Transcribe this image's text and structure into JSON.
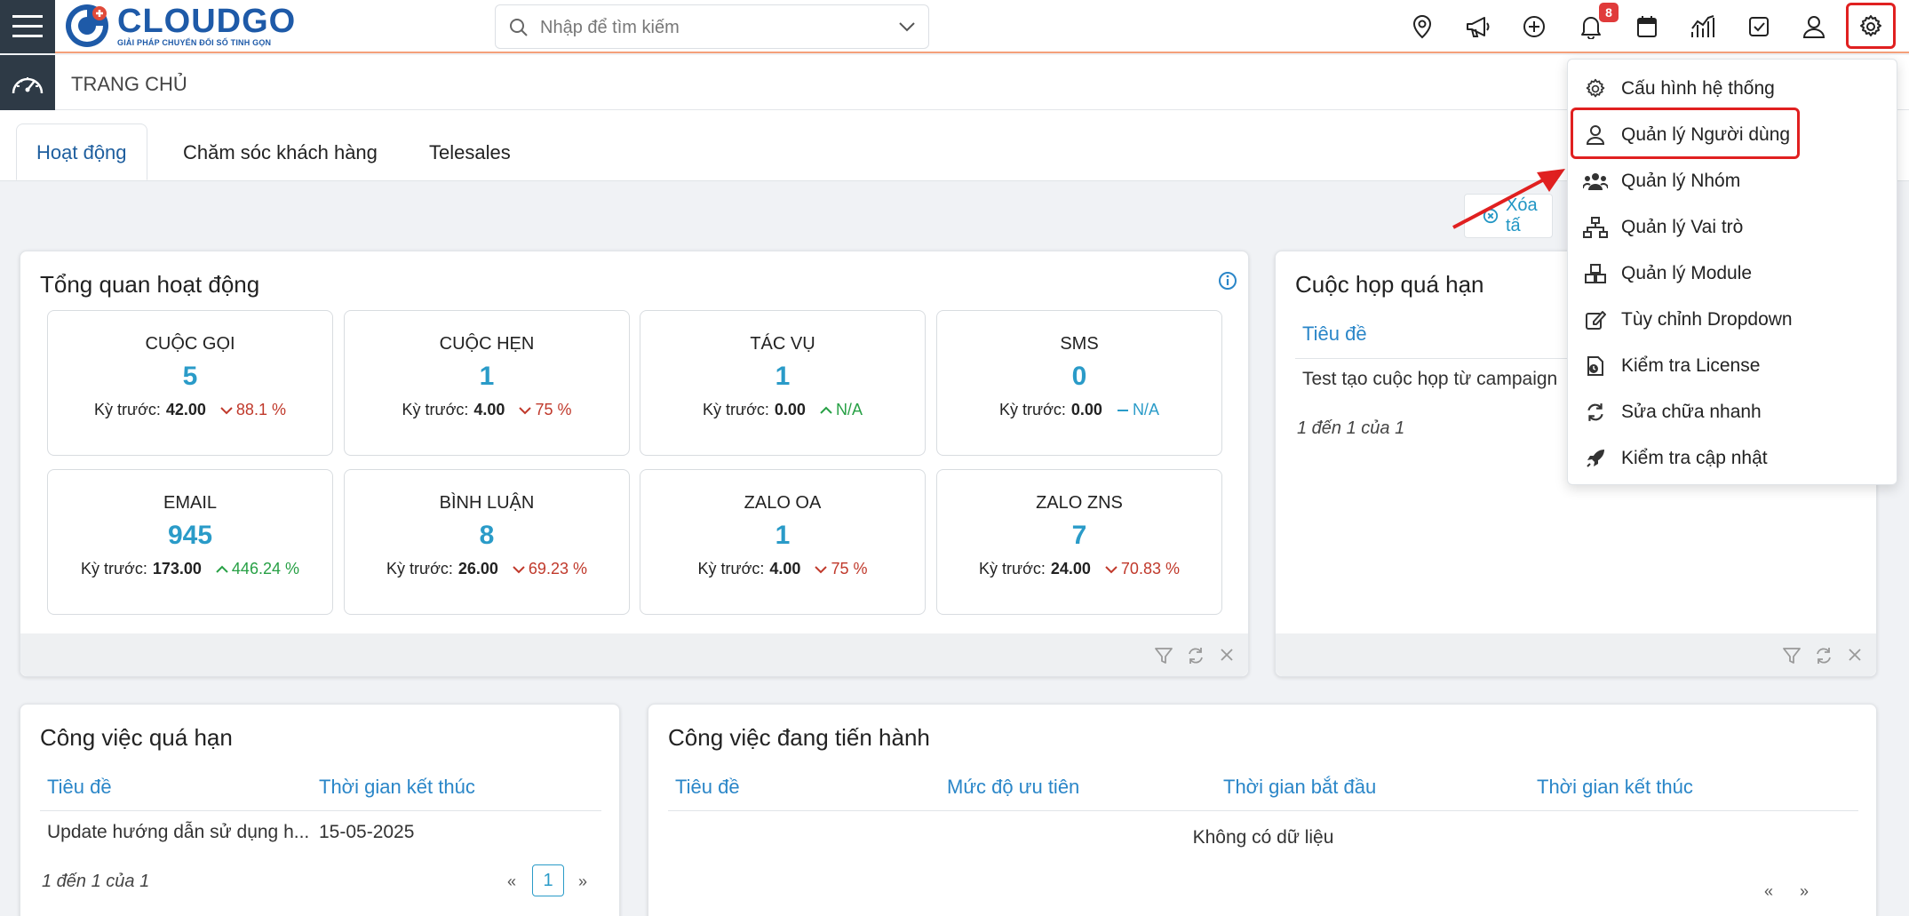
{
  "app": {
    "logo_name": "CLOUDGO",
    "logo_tagline": "GIẢI PHÁP CHUYỂN ĐỔI SỐ TINH GỌN",
    "brand_color": "#1e5aa8",
    "accent_color": "#2a9bc8"
  },
  "search": {
    "placeholder": "Nhập để tìm kiếm"
  },
  "toolbar": {
    "icons": [
      "map-pin-icon",
      "megaphone-icon",
      "plus-circle-icon",
      "bell-icon",
      "calendar-icon",
      "chart-icon",
      "checkbox-icon",
      "user-icon",
      "gear-icon"
    ],
    "notification_count": "8"
  },
  "breadcrumb": {
    "title": "TRANG CHỦ"
  },
  "tabs": [
    {
      "label": "Hoạt động",
      "active": true
    },
    {
      "label": "Chăm sóc khách hàng",
      "active": false
    },
    {
      "label": "Telesales",
      "active": false
    }
  ],
  "clear_button": {
    "label": "Xóa tấ"
  },
  "overview": {
    "title": "Tổng quan hoạt động",
    "prev_label": "Kỳ trước:",
    "stats": [
      {
        "label": "CUỘC GỌI",
        "value": "5",
        "prev": "42.00",
        "change": "88.1 %",
        "trend": "down"
      },
      {
        "label": "CUỘC HẸN",
        "value": "1",
        "prev": "4.00",
        "change": "75 %",
        "trend": "down"
      },
      {
        "label": "TÁC VỤ",
        "value": "1",
        "prev": "0.00",
        "change": "N/A",
        "trend": "up"
      },
      {
        "label": "SMS",
        "value": "0",
        "prev": "0.00",
        "change": "N/A",
        "trend": "flat"
      },
      {
        "label": "EMAIL",
        "value": "945",
        "prev": "173.00",
        "change": "446.24 %",
        "trend": "up"
      },
      {
        "label": "BÌNH LUẬN",
        "value": "8",
        "prev": "26.00",
        "change": "69.23 %",
        "trend": "down"
      },
      {
        "label": "ZALO OA",
        "value": "1",
        "prev": "4.00",
        "change": "75 %",
        "trend": "down"
      },
      {
        "label": "ZALO ZNS",
        "value": "7",
        "prev": "24.00",
        "change": "70.83 %",
        "trend": "down"
      }
    ]
  },
  "meetings": {
    "title": "Cuộc họp quá hạn",
    "header": "Tiêu đề",
    "rows": [
      "Test tạo cuộc họp từ campaign"
    ],
    "pager": "1 đến 1 của 1"
  },
  "overdue_tasks": {
    "title": "Công việc quá hạn",
    "headers": [
      "Tiêu đề",
      "Thời gian kết thúc"
    ],
    "rows": [
      [
        "Update hướng dẫn sử dụng h...",
        "15-05-2025"
      ]
    ],
    "pager": "1 đến 1 của 1",
    "page": "1",
    "prev": "«",
    "next": "»"
  },
  "inprogress_tasks": {
    "title": "Công việc đang tiến hành",
    "headers": [
      "Tiêu đề",
      "Mức độ ưu tiên",
      "Thời gian bắt đầu",
      "Thời gian kết thúc"
    ],
    "empty": "Không có dữ liệu",
    "prev": "«",
    "next": "»"
  },
  "settings_menu": {
    "items": [
      {
        "label": "Cấu hình hệ thống",
        "icon": "gear-icon"
      },
      {
        "label": "Quản lý Người dùng",
        "icon": "user-icon"
      },
      {
        "label": "Quản lý Nhóm",
        "icon": "users-icon"
      },
      {
        "label": "Quản lý Vai trò",
        "icon": "sitemap-icon"
      },
      {
        "label": "Quản lý Module",
        "icon": "cubes-icon"
      },
      {
        "label": "Tùy chỉnh Dropdown",
        "icon": "edit-icon"
      },
      {
        "label": "Kiểm tra License",
        "icon": "license-icon"
      },
      {
        "label": "Sửa chữa nhanh",
        "icon": "refresh-icon"
      },
      {
        "label": "Kiểm tra cập nhật",
        "icon": "rocket-icon"
      }
    ]
  }
}
